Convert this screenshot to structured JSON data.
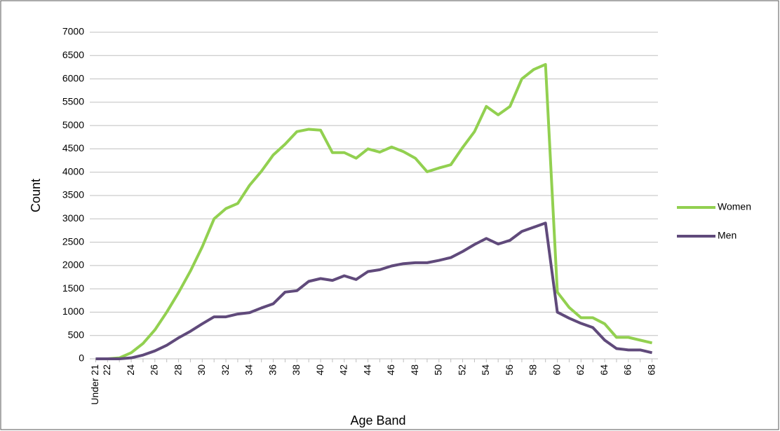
{
  "chart_data": {
    "type": "line",
    "x_label": "Age Band",
    "y_label": "Count",
    "categories": [
      "Under 21",
      "22",
      null,
      "24",
      null,
      "26",
      null,
      "28",
      null,
      "30",
      null,
      "32",
      null,
      "34",
      null,
      "36",
      null,
      "38",
      null,
      "40",
      null,
      "42",
      null,
      "44",
      null,
      "46",
      null,
      "48",
      null,
      "50",
      null,
      "52",
      null,
      "54",
      null,
      "56",
      null,
      "58",
      null,
      "60",
      null,
      "62",
      null,
      "64",
      null,
      "66",
      null,
      "68"
    ],
    "series": [
      {
        "name": "Women",
        "color": "#92d050",
        "values": [
          0,
          0,
          20,
          130,
          330,
          620,
          1000,
          1420,
          1880,
          2400,
          3000,
          3220,
          3330,
          3720,
          4020,
          4370,
          4600,
          4870,
          4920,
          4900,
          4420,
          4420,
          4300,
          4500,
          4430,
          4540,
          4440,
          4300,
          4010,
          4090,
          4160,
          4530,
          4870,
          5410,
          5230,
          5410,
          6000,
          6200,
          6310,
          1430,
          1100,
          880,
          880,
          750,
          460,
          460,
          400,
          340
        ]
      },
      {
        "name": "Men",
        "color": "#604a7b",
        "values": [
          0,
          0,
          0,
          20,
          80,
          170,
          290,
          450,
          590,
          750,
          900,
          900,
          960,
          990,
          1090,
          1180,
          1430,
          1460,
          1660,
          1720,
          1680,
          1780,
          1700,
          1870,
          1910,
          1990,
          2040,
          2060,
          2060,
          2110,
          2170,
          2300,
          2450,
          2580,
          2460,
          2540,
          2730,
          2820,
          2910,
          1000,
          870,
          760,
          670,
          400,
          220,
          190,
          190,
          130
        ]
      }
    ],
    "ylim": [
      0,
      7000
    ],
    "yticks": [
      0,
      500,
      1000,
      1500,
      2000,
      2500,
      3000,
      3500,
      4000,
      4500,
      5000,
      5500,
      6000,
      6500,
      7000
    ],
    "grid": true,
    "legend": "right"
  }
}
